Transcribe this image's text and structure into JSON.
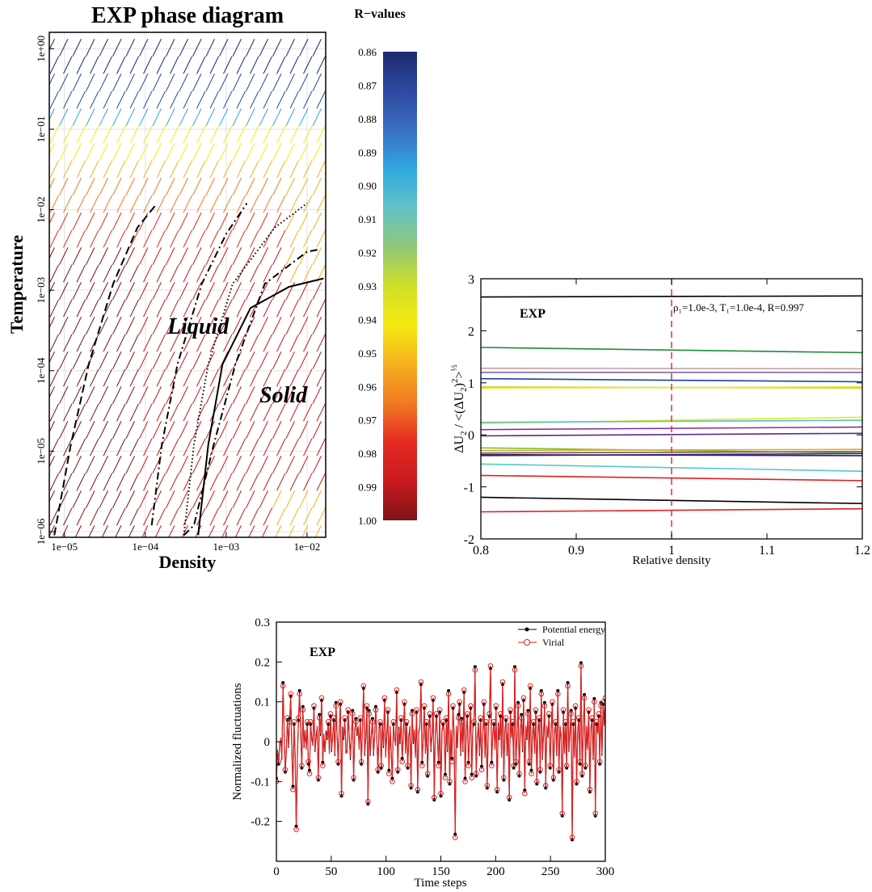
{
  "chart_data": [
    {
      "type": "scatter",
      "title": "EXP phase diagram",
      "xlabel": "Density",
      "ylabel": "Temperature",
      "x_scale": "log",
      "y_scale": "log",
      "xlim": [
        6.5e-06,
        0.017
      ],
      "ylim": [
        8.5e-07,
        1.6
      ],
      "x_ticks": [
        {
          "value": 1e-05,
          "label": "1e−05"
        },
        {
          "value": 0.0001,
          "label": "1e−04"
        },
        {
          "value": 0.001,
          "label": "1e−03"
        },
        {
          "value": 0.01,
          "label": "1e−02"
        }
      ],
      "y_ticks": [
        {
          "value": 1e-06,
          "label": "1e−06"
        },
        {
          "value": 1e-05,
          "label": "1e−05"
        },
        {
          "value": 0.0001,
          "label": "1e−04"
        },
        {
          "value": 0.001,
          "label": "1e−03"
        },
        {
          "value": 0.01,
          "label": "1e−02"
        },
        {
          "value": 0.1,
          "label": "1e−01"
        },
        {
          "value": 1,
          "label": "1e+00"
        }
      ],
      "region_labels": [
        "Liquid",
        "Solid"
      ],
      "grid": true,
      "colorbar": {
        "title": "R−values",
        "range": [
          0.86,
          1.0
        ],
        "tick_labels": [
          "0.86",
          "0.87",
          "0.88",
          "0.89",
          "0.90",
          "0.91",
          "0.92",
          "0.93",
          "0.94",
          "0.95",
          "0.96",
          "0.97",
          "0.98",
          "0.99",
          "1.00"
        ],
        "colors": [
          "#1d2a6e",
          "#2c4aa0",
          "#3a6fc0",
          "#2fa8e0",
          "#63c2c8",
          "#8fc878",
          "#cfe028",
          "#f5ea10",
          "#f6b01e",
          "#f07a22",
          "#e62a22",
          "#c81a1e",
          "#7e1416"
        ]
      },
      "phase_lines": [
        {
          "style": "dashed",
          "points": [
            [
              7.5e-06,
              9e-07
            ],
            [
              1.2e-05,
              1.2e-05
            ],
            [
              2e-05,
              0.00012
            ],
            [
              4e-05,
              0.0012
            ],
            [
              8e-05,
              0.006
            ],
            [
              0.00014,
              0.012
            ]
          ]
        },
        {
          "style": "dash-dot",
          "points": [
            [
              0.00012,
              1.2e-06
            ],
            [
              0.00016,
              1.2e-05
            ],
            [
              0.00025,
              0.00012
            ],
            [
              0.0005,
              0.0012
            ],
            [
              0.001,
              0.005
            ],
            [
              0.0018,
              0.012
            ]
          ]
        },
        {
          "style": "dotted",
          "points": [
            [
              0.0003,
              9e-07
            ],
            [
              0.0004,
              1.2e-05
            ],
            [
              0.0006,
              0.00012
            ],
            [
              0.0012,
              0.0012
            ],
            [
              0.004,
              0.006
            ],
            [
              0.01,
              0.012
            ]
          ]
        },
        {
          "style": "dash-dot",
          "points": [
            [
              0.0003,
              9e-07
            ],
            [
              0.0004,
              1.2e-06
            ],
            [
              0.0007,
              1.2e-05
            ],
            [
              0.0013,
              0.00012
            ],
            [
              0.003,
              0.0012
            ],
            [
              0.01,
              0.003
            ],
            [
              0.014,
              0.0032
            ]
          ]
        },
        {
          "style": "solid",
          "points": [
            [
              0.00045,
              9e-07
            ],
            [
              0.0006,
              1.2e-05
            ],
            [
              0.0009,
              0.00012
            ],
            [
              0.002,
              0.0006
            ],
            [
              0.006,
              0.0011
            ],
            [
              0.016,
              0.0014
            ]
          ]
        }
      ]
    },
    {
      "type": "line",
      "title": "EXP",
      "annotation": "ρ₁=1.0e-3, T₁=1.0e-4, R=0.997",
      "ylabel_parts": {
        "main": "ΔU",
        "sub": "2",
        "sep": " / <(ΔU",
        "sub2": "2",
        "close": ")",
        "sup": "2",
        "end": ">",
        "sup2": "½"
      },
      "xlabel": "Relative density",
      "xlim": [
        0.8,
        1.2
      ],
      "ylim": [
        -2,
        3
      ],
      "x_ticks": [
        0.8,
        0.9,
        1.0,
        1.1,
        1.2
      ],
      "x_tick_labels": [
        "0.8",
        "0.9",
        "1",
        "1.1",
        "1.2"
      ],
      "y_ticks": [
        -2,
        -1,
        0,
        1,
        2,
        3
      ],
      "y_tick_labels": [
        "-2",
        "-1",
        "0",
        "1",
        "2",
        "3"
      ],
      "reference_line": {
        "x": 1.0,
        "color": "#e03030",
        "style": "dashed"
      },
      "series": [
        {
          "color": "#000000",
          "y0": 2.65,
          "y1": 2.67
        },
        {
          "color": "#1f8a3a",
          "y0": 1.68,
          "y1": 1.58
        },
        {
          "color": "#c8a0a0",
          "y0": 1.28,
          "y1": 1.27
        },
        {
          "color": "#7b6aa8",
          "y0": 1.2,
          "y1": 1.2
        },
        {
          "color": "#1e3fa8",
          "y0": 1.08,
          "y1": 1.02
        },
        {
          "color": "#c8d020",
          "y0": 0.92,
          "y1": 0.9
        },
        {
          "color": "#e8e818",
          "y0": 0.9,
          "y1": 0.92
        },
        {
          "color": "#e8e818",
          "y0": 0.22,
          "y1": 0.34
        },
        {
          "color": "#56c2c2",
          "y0": 0.24,
          "y1": 0.28
        },
        {
          "color": "#8a2a9a",
          "y0": 0.1,
          "y1": 0.15
        },
        {
          "color": "#5e2a8a",
          "y0": -0.02,
          "y1": 0.03
        },
        {
          "color": "#7ac040",
          "y0": -0.25,
          "y1": -0.35
        },
        {
          "color": "#f0a020",
          "y0": -0.3,
          "y1": -0.28
        },
        {
          "color": "#606060",
          "y0": -0.35,
          "y1": -0.32
        },
        {
          "color": "#3a2a8a",
          "y0": -0.4,
          "y1": -0.36
        },
        {
          "color": "#3a1a5a",
          "y0": -0.38,
          "y1": -0.4
        },
        {
          "color": "#56c8c8",
          "y0": -0.56,
          "y1": -0.7
        },
        {
          "color": "#e02020",
          "y0": -0.78,
          "y1": -0.88
        },
        {
          "color": "#000000",
          "y0": -1.2,
          "y1": -1.32
        },
        {
          "color": "#e02020",
          "y0": -1.48,
          "y1": -1.42
        }
      ]
    },
    {
      "type": "line",
      "title": "EXP",
      "xlabel": "Time steps",
      "ylabel": "Normalized fluctuations",
      "xlim": [
        0,
        300
      ],
      "ylim": [
        -0.3,
        0.3
      ],
      "x_ticks": [
        0,
        50,
        100,
        150,
        200,
        250,
        300
      ],
      "y_ticks": [
        -0.2,
        -0.1,
        0,
        0.1,
        0.2,
        0.3
      ],
      "y_tick_labels": [
        "-0.2",
        "-0.1",
        "0",
        "0.1",
        "0.2",
        "0.3"
      ],
      "legend_position": "top-right",
      "series": [
        {
          "name": "Potential energy",
          "color": "#000000",
          "marker": "filled-circle"
        },
        {
          "name": "Virial",
          "color": "#e02020",
          "marker": "open-circle"
        }
      ],
      "values": [
        -0.1,
        -0.02,
        -0.05,
        -0.01,
        0.01,
        -0.04,
        0.14,
        0.03,
        -0.07,
        -0.03,
        0.06,
        -0.01,
        0.05,
        0.12,
        -0.02,
        -0.12,
        0.05,
        -0.03,
        -0.22,
        -0.04,
        0.06,
        0.12,
        0.03,
        -0.06,
        0.08,
        -0.01,
        0.03,
        -0.02,
        0.05,
        -0.05,
        -0.08,
        0.05,
        0.01,
        -0.01,
        0.09,
        -0.02,
        0.01,
        0.04,
        -0.09,
        0.06,
        0.02,
        0.11,
        -0.06,
        0.02,
        -0.02,
        0.02,
        0.01,
        0.05,
        -0.03,
        0.07,
        -0.02,
        0.01,
        0.06,
        -0.03,
        0.09,
        0.02,
        -0.05,
        0.03,
        0.1,
        -0.13,
        0.03,
        0.01,
        0.06,
        -0.03,
        -0.02,
        0.08,
        0.01,
        -0.04,
        0.02,
        0.07,
        -0.09,
        0.03,
        0.05,
        0.02,
        0.04,
        -0.02,
        0.06,
        -0.05,
        0.03,
        0.14,
        -0.03,
        0.01,
        0.09,
        -0.15,
        0.07,
        -0.03,
        0.02,
        0.05,
        -0.03,
        0.02,
        0.08,
        0.01,
        -0.07,
        0.03,
        0.05,
        -0.06,
        0.04,
        -0.01,
        0.11,
        -0.04,
        0.02,
        0.08,
        -0.08,
        0.04,
        -0.02,
        -0.1,
        0.05,
        0.01,
        -0.01,
        0.13,
        -0.07,
        0.03,
        0.0,
        0.06,
        -0.05,
        0.02,
        0.1,
        -0.03,
        0.05,
        -0.06,
        0.01,
        0.04,
        -0.11,
        0.07,
        0.0,
        0.03,
        -0.04,
        0.08,
        -0.12,
        0.02,
        0.04,
        0.15,
        -0.06,
        0.01,
        0.09,
        -0.03,
        0.05,
        -0.08,
        0.03,
        0.07,
        -0.02,
        0.01,
        0.11,
        -0.14,
        0.02,
        0.07,
        0.0,
        -0.06,
        0.08,
        -0.13,
        0.02,
        0.05,
        0.03,
        -0.09,
        0.06,
        -0.02,
        0.12,
        -0.1,
        0.03,
        -0.05,
        0.09,
        0.02,
        -0.24,
        0.04,
        -0.01,
        0.06,
        0.1,
        -0.03,
        0.05,
        -0.02,
        0.13,
        -0.1,
        0.03,
        0.07,
        -0.06,
        0.02,
        0.09,
        -0.09,
        0.04,
        0.05,
        0.18,
        -0.08,
        0.01,
        0.04,
        -0.03,
        0.06,
        -0.07,
        0.02,
        0.1,
        -0.04,
        0.05,
        -0.11,
        0.03,
        0.07,
        0.19,
        -0.06,
        0.02,
        0.05,
        -0.02,
        0.09,
        -0.12,
        0.04,
        0.01,
        0.07,
        -0.04,
        0.15,
        -0.09,
        0.02,
        0.06,
        -0.03,
        0.04,
        -0.14,
        0.08,
        0.01,
        0.05,
        -0.06,
        0.18,
        -0.05,
        0.02,
        0.09,
        -0.08,
        0.03,
        0.06,
        -0.02,
        0.11,
        -0.13,
        0.04,
        0.01,
        0.07,
        -0.05,
        0.14,
        -0.08,
        0.02,
        0.05,
        -0.03,
        0.08,
        -0.1,
        0.03,
        0.06,
        -0.07,
        0.12,
        -0.04,
        0.02,
        0.09,
        -0.11,
        0.04,
        0.01,
        0.07,
        -0.06,
        0.03,
        0.1,
        -0.09,
        0.02,
        0.05,
        -0.03,
        0.12,
        -0.07,
        0.04,
        0.01,
        -0.18,
        0.08,
        -0.03,
        0.05,
        -0.06,
        0.14,
        -0.02,
        0.03,
        0.07,
        -0.24,
        0.05,
        -0.04,
        0.09,
        -0.1,
        0.02,
        0.06,
        -0.05,
        0.19,
        -0.08,
        0.03,
        0.11,
        -0.06,
        0.04,
        -0.02,
        0.08,
        -0.12,
        0.03,
        0.06,
        -0.04,
        0.1,
        -0.18,
        0.05,
        0.02,
        0.07,
        -0.05,
        0.09,
        -0.03,
        0.1,
        0.04,
        0.11
      ]
    }
  ]
}
